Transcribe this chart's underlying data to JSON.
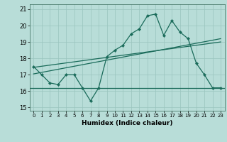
{
  "title": "",
  "xlabel": "Humidex (Indice chaleur)",
  "xlim": [
    -0.5,
    23.5
  ],
  "ylim": [
    14.8,
    21.3
  ],
  "yticks": [
    15,
    16,
    17,
    18,
    19,
    20,
    21
  ],
  "xticks": [
    0,
    1,
    2,
    3,
    4,
    5,
    6,
    7,
    8,
    9,
    10,
    11,
    12,
    13,
    14,
    15,
    16,
    17,
    18,
    19,
    20,
    21,
    22,
    23
  ],
  "bg_color": "#b8ddd8",
  "line_color": "#1a6b5a",
  "grid_color": "#99c4be",
  "main_x": [
    0,
    1,
    2,
    3,
    4,
    5,
    6,
    7,
    8,
    9,
    10,
    11,
    12,
    13,
    14,
    15,
    16,
    17,
    18,
    19,
    20,
    21,
    22,
    23
  ],
  "main_y": [
    17.5,
    17.0,
    16.5,
    16.4,
    17.0,
    17.0,
    16.2,
    15.4,
    16.2,
    18.1,
    18.5,
    18.8,
    19.5,
    19.8,
    20.6,
    20.7,
    19.4,
    20.3,
    19.6,
    19.2,
    17.7,
    17.0,
    16.2,
    16.2
  ],
  "flat_y": 16.2,
  "trend1_x0": 0,
  "trend1_y0": 17.05,
  "trend1_x1": 23,
  "trend1_y1": 19.2,
  "trend2_x0": 0,
  "trend2_y0": 17.45,
  "trend2_x1": 23,
  "trend2_y1": 19.0
}
